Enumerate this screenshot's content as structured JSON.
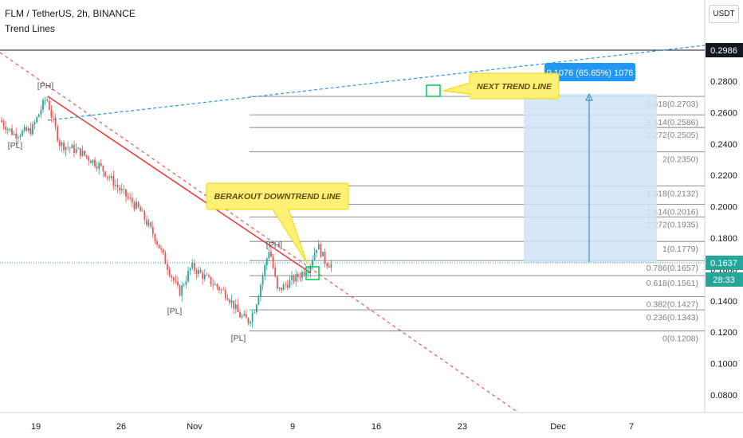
{
  "header": {
    "symbol_line": "FLM / TetherUS, 2h, BINANCE",
    "indicator": "Trend Lines"
  },
  "axis": {
    "unit_button": "USDT",
    "price_ticks": [
      "0.2800",
      "0.2600",
      "0.2400",
      "0.2200",
      "0.2000",
      "0.1800",
      "0.1600",
      "0.1400",
      "0.1200",
      "0.1000",
      "0.0800"
    ],
    "date_ticks": [
      "19",
      "26",
      "Nov",
      "9",
      "16",
      "23",
      "Dec",
      "7"
    ],
    "top_price_label": "0.2986",
    "last_price_label": "0.1637",
    "countdown_label": "28:33"
  },
  "colors": {
    "candle_up": "#26a69a",
    "candle_down": "#ef5350",
    "trend_red": "#ef5350",
    "trend_blue": "#2196f3",
    "callout_yellow": "#fff176",
    "projection_box": "#cfe3f7",
    "label_blue": "#2196f3",
    "last_price_bg": "#26a69a"
  },
  "annotations": {
    "breakout_text": "BERAKOUT DOWNTREND LINE",
    "next_trend_text": "NEXT TREND LINE",
    "measure_text": "0.1076 (65.65%) 1076"
  },
  "chart_data": {
    "type": "candlestick",
    "ylim": [
      0.07,
      0.305
    ],
    "pivot_labels": [
      {
        "text": "[PH]",
        "x": "Oct 19",
        "y": 0.272
      },
      {
        "text": "[PL]",
        "x": "Oct 17",
        "y": 0.234
      },
      {
        "text": "[PL]",
        "x": "Oct 30",
        "y": 0.129
      },
      {
        "text": "[PL]",
        "x": "Nov 4",
        "y": 0.11
      },
      {
        "text": "[PH]",
        "x": "Nov 7",
        "y": 0.176
      }
    ],
    "fib_levels": [
      {
        "label": "2.618(0.2703)",
        "value": 0.2703
      },
      {
        "label": "2.414(0.2586)",
        "value": 0.2586
      },
      {
        "label": "2.272(0.2505)",
        "value": 0.2505
      },
      {
        "label": "2(0.2350)",
        "value": 0.235
      },
      {
        "label": "1.618(0.2132)",
        "value": 0.2132
      },
      {
        "label": "1.414(0.2016)",
        "value": 0.2016
      },
      {
        "label": "1.272(0.1935)",
        "value": 0.1935
      },
      {
        "label": "1(0.1779)",
        "value": 0.1779
      },
      {
        "label": "0.786(0.1657)",
        "value": 0.1657
      },
      {
        "label": "0.618(0.1561)",
        "value": 0.1561
      },
      {
        "label": "0.382(0.1427)",
        "value": 0.1427
      },
      {
        "label": "0.236(0.1343)",
        "value": 0.1343
      },
      {
        "label": "0(0.1208)",
        "value": 0.1208
      }
    ],
    "last_price": 0.1637,
    "measure": {
      "from": 0.1637,
      "to": 0.2713,
      "change": 0.1076,
      "percent": 65.65
    }
  }
}
